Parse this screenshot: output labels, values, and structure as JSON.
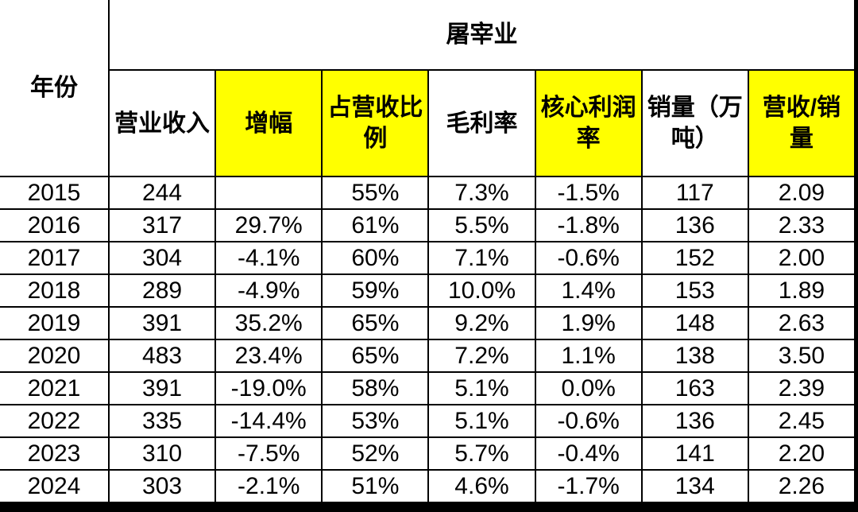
{
  "colors": {
    "highlight": "#ffff00",
    "border": "#000000",
    "text": "#000000",
    "background": "#ffffff",
    "frame": "#000000"
  },
  "chart_data": {
    "type": "table",
    "group_header": "屠宰业",
    "corner_header": "年份",
    "columns": [
      {
        "label": "营业收入",
        "highlight": false
      },
      {
        "label": "增幅",
        "highlight": true
      },
      {
        "label": "占营收比\n例",
        "highlight": true
      },
      {
        "label": "毛利率",
        "highlight": false
      },
      {
        "label": "核心利润\n率",
        "highlight": true
      },
      {
        "label": "销量（万\n吨）",
        "highlight": false
      },
      {
        "label": "营收/销\n量",
        "highlight": true
      }
    ],
    "rows": [
      {
        "year": "2015",
        "cells": [
          "244",
          "",
          "55%",
          "7.3%",
          "-1.5%",
          "117",
          "2.09"
        ]
      },
      {
        "year": "2016",
        "cells": [
          "317",
          "29.7%",
          "61%",
          "5.5%",
          "-1.8%",
          "136",
          "2.33"
        ]
      },
      {
        "year": "2017",
        "cells": [
          "304",
          "-4.1%",
          "60%",
          "7.1%",
          "-0.6%",
          "152",
          "2.00"
        ]
      },
      {
        "year": "2018",
        "cells": [
          "289",
          "-4.9%",
          "59%",
          "10.0%",
          "1.4%",
          "153",
          "1.89"
        ]
      },
      {
        "year": "2019",
        "cells": [
          "391",
          "35.2%",
          "65%",
          "9.2%",
          "1.9%",
          "148",
          "2.63"
        ]
      },
      {
        "year": "2020",
        "cells": [
          "483",
          "23.4%",
          "65%",
          "7.2%",
          "1.1%",
          "138",
          "3.50"
        ]
      },
      {
        "year": "2021",
        "cells": [
          "391",
          "-19.0%",
          "58%",
          "5.1%",
          "0.0%",
          "163",
          "2.39"
        ]
      },
      {
        "year": "2022",
        "cells": [
          "335",
          "-14.4%",
          "53%",
          "5.1%",
          "-0.6%",
          "136",
          "2.45"
        ]
      },
      {
        "year": "2023",
        "cells": [
          "310",
          "-7.5%",
          "52%",
          "5.7%",
          "-0.4%",
          "141",
          "2.20"
        ]
      },
      {
        "year": "2024",
        "cells": [
          "303",
          "-2.1%",
          "51%",
          "4.6%",
          "-1.7%",
          "134",
          "2.26"
        ]
      }
    ]
  }
}
